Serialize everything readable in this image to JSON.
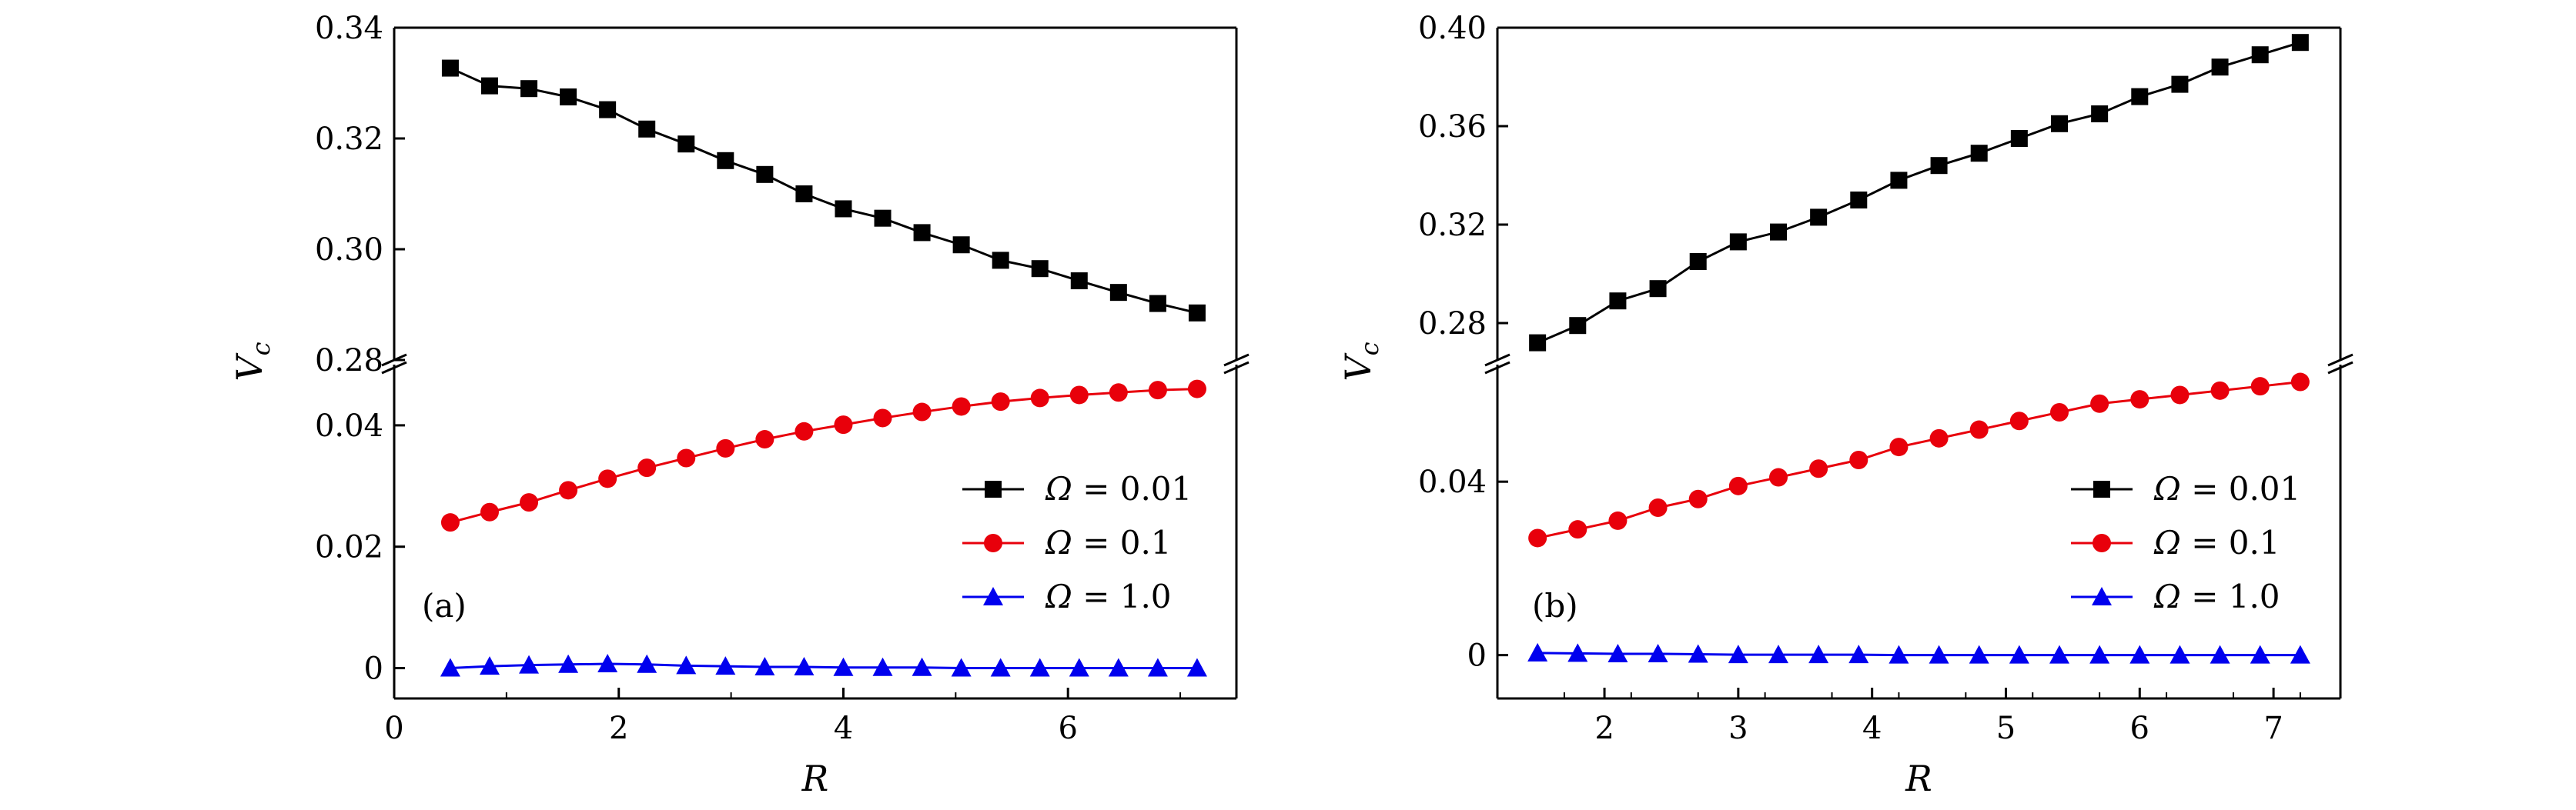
{
  "chart_data": [
    {
      "type": "line",
      "panel_label": "(a)",
      "xlabel": "R",
      "ylabel": "V",
      "ylabel_sub": "c",
      "xlim": [
        0,
        7.5
      ],
      "xticks": [
        0,
        2,
        4,
        6
      ],
      "xtick_labels": [
        "0",
        "2",
        "4",
        "6"
      ],
      "broken_y_axis": true,
      "upper_ylim": [
        0.28,
        0.34
      ],
      "upper_yticks": [
        0.28,
        0.3,
        0.32,
        0.34
      ],
      "upper_ytick_labels": [
        "0.28",
        "0.30",
        "0.32",
        "0.34"
      ],
      "lower_ylim": [
        -0.005,
        0.05
      ],
      "lower_yticks": [
        0,
        0.02,
        0.04
      ],
      "lower_ytick_labels": [
        "0",
        "0.02",
        "0.04"
      ],
      "legend_position": "right",
      "x": [
        0.5,
        0.85,
        1.2,
        1.55,
        1.9,
        2.25,
        2.6,
        2.95,
        3.3,
        3.65,
        4.0,
        4.35,
        4.7,
        5.05,
        5.4,
        5.75,
        6.1,
        6.45,
        6.8,
        7.15
      ],
      "series": [
        {
          "name": "Ω = 0.01",
          "name_prefix": "Ω",
          "name_value": "= 0.01",
          "color": "#000000",
          "marker": "square",
          "segment": "upper",
          "values": [
            0.3327,
            0.3295,
            0.329,
            0.3275,
            0.3252,
            0.3217,
            0.319,
            0.316,
            0.3135,
            0.31,
            0.3073,
            0.3056,
            0.303,
            0.3008,
            0.298,
            0.2965,
            0.2943,
            0.2922,
            0.2902,
            0.2885
          ]
        },
        {
          "name": "Ω = 0.1",
          "name_prefix": "Ω",
          "name_value": "= 0.1",
          "color": "#e8000b",
          "marker": "circle",
          "segment": "lower",
          "values": [
            0.024,
            0.0257,
            0.0273,
            0.0293,
            0.0312,
            0.033,
            0.0346,
            0.0362,
            0.0377,
            0.039,
            0.0401,
            0.0412,
            0.0422,
            0.0431,
            0.0439,
            0.0445,
            0.045,
            0.0454,
            0.0458,
            0.046
          ]
        },
        {
          "name": "Ω = 1.0",
          "name_prefix": "Ω",
          "name_value": "= 1.0",
          "color": "#0000ee",
          "marker": "triangle",
          "segment": "lower",
          "values": [
            0.0,
            0.0003,
            0.0005,
            0.0006,
            0.0007,
            0.0006,
            0.0004,
            0.0003,
            0.0002,
            0.0002,
            0.0001,
            0.0001,
            0.0001,
            0.0,
            0.0,
            0.0,
            0.0,
            0.0,
            0.0,
            0.0
          ]
        }
      ]
    },
    {
      "type": "line",
      "panel_label": "(b)",
      "xlabel": "R",
      "ylabel": "V",
      "ylabel_sub": "c",
      "xlim": [
        1.2,
        7.5
      ],
      "xticks": [
        2,
        3,
        4,
        5,
        6,
        7
      ],
      "xtick_labels": [
        "2",
        "3",
        "4",
        "5",
        "6",
        "7"
      ],
      "broken_y_axis": true,
      "upper_ylim": [
        0.265,
        0.4
      ],
      "upper_yticks": [
        0.28,
        0.32,
        0.36,
        0.4
      ],
      "upper_ytick_labels": [
        "0.28",
        "0.32",
        "0.36",
        "0.40"
      ],
      "lower_ylim": [
        -0.01,
        0.067
      ],
      "lower_yticks": [
        0,
        0.04
      ],
      "lower_ytick_labels": [
        "0",
        "0.04"
      ],
      "legend_position": "right",
      "x": [
        1.5,
        1.8,
        2.1,
        2.4,
        2.7,
        3.0,
        3.3,
        3.6,
        3.9,
        4.2,
        4.5,
        4.8,
        5.1,
        5.4,
        5.7,
        6.0,
        6.3,
        6.6,
        6.9,
        7.2
      ],
      "series": [
        {
          "name": "Ω = 0.01",
          "name_prefix": "Ω",
          "name_value": "= 0.01",
          "color": "#000000",
          "marker": "square",
          "segment": "upper",
          "values": [
            0.272,
            0.279,
            0.289,
            0.294,
            0.305,
            0.313,
            0.317,
            0.323,
            0.33,
            0.338,
            0.344,
            0.349,
            0.355,
            0.361,
            0.365,
            0.372,
            0.377,
            0.384,
            0.389,
            0.394
          ]
        },
        {
          "name": "Ω = 0.1",
          "name_prefix": "Ω",
          "name_value": "= 0.1",
          "color": "#e8000b",
          "marker": "circle",
          "segment": "lower",
          "values": [
            0.027,
            0.029,
            0.031,
            0.034,
            0.036,
            0.039,
            0.041,
            0.043,
            0.045,
            0.048,
            0.05,
            0.052,
            0.054,
            0.056,
            0.058,
            0.059,
            0.06,
            0.061,
            0.062,
            0.063
          ]
        },
        {
          "name": "Ω = 1.0",
          "name_prefix": "Ω",
          "name_value": "= 1.0",
          "color": "#0000ee",
          "marker": "triangle",
          "segment": "lower",
          "values": [
            0.0005,
            0.0004,
            0.0003,
            0.0003,
            0.0002,
            0.0001,
            0.0001,
            0.0001,
            0.0001,
            0.0,
            0.0,
            0.0,
            0.0,
            0.0,
            0.0,
            0.0,
            0.0,
            0.0,
            0.0,
            0.0
          ]
        }
      ]
    }
  ]
}
